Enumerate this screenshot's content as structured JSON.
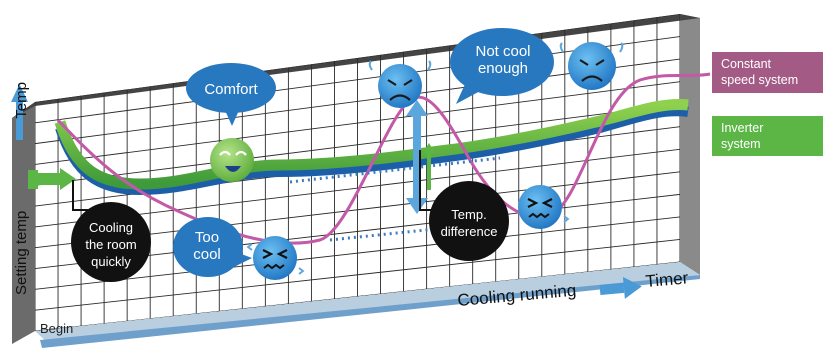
{
  "labels": {
    "y_axis_high": "Temp",
    "y_axis_low": "Setting temp",
    "x_axis_running": "Cooling running",
    "x_axis_timer": "Timer",
    "begin": "Begin"
  },
  "bubbles": {
    "comfort": "Comfort",
    "not_cool_line1": "Not cool",
    "not_cool_line2": "enough",
    "too_line1": "Too",
    "too_line2": "cool"
  },
  "callouts": {
    "cooling_line1": "Cooling",
    "cooling_line2": "the room",
    "cooling_line3": "quickly",
    "temp_line1": "Temp.",
    "temp_line2": "difference"
  },
  "legend": {
    "constant_line1": "Constant",
    "constant_line2": "speed system",
    "inverter_line1": "Inverter",
    "inverter_line2": "system"
  },
  "colors": {
    "constant": "#a35a84",
    "inverter": "#5cb646",
    "constant_curve": "#c35aa8",
    "blue_ribbon": "#1c5fa8",
    "wall": "#8c8c8c",
    "face_blue": "#2f8fd3",
    "face_green": "#7cc251"
  }
}
